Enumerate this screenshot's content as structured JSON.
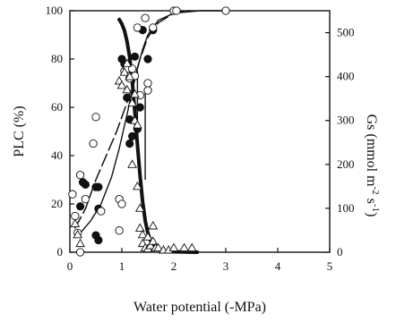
{
  "chart_data": {
    "type": "scatter",
    "xlabel": "Water potential (-MPa)",
    "ylabel_left": "PLC (%)",
    "ylabel_right_main": "Gs (mmol m",
    "ylabel_right_sup1": "-2",
    "ylabel_right_mid": " s",
    "ylabel_right_sup2": "-1",
    "ylabel_right_end": ")",
    "xlim": [
      0,
      5
    ],
    "ylim_left": [
      0,
      100
    ],
    "ylim_right": [
      0,
      550
    ],
    "x_ticks": [
      0,
      1,
      2,
      3,
      4,
      5
    ],
    "y_left_ticks": [
      0,
      20,
      40,
      60,
      80,
      100
    ],
    "y_right_ticks": [
      0,
      100,
      200,
      300,
      400,
      500
    ],
    "series": [
      {
        "marker": "filled-circle",
        "axis": "left",
        "points": [
          [
            0.2,
            19
          ],
          [
            0.25,
            29
          ],
          [
            0.3,
            28
          ],
          [
            0.5,
            27
          ],
          [
            0.55,
            27
          ],
          [
            0.5,
            7
          ],
          [
            0.55,
            5
          ],
          [
            0.55,
            18
          ],
          [
            1.0,
            80
          ],
          [
            1.05,
            78
          ],
          [
            1.1,
            64
          ],
          [
            1.15,
            55
          ],
          [
            1.15,
            45
          ],
          [
            1.2,
            48
          ],
          [
            1.25,
            81
          ],
          [
            1.3,
            51
          ],
          [
            1.35,
            60
          ],
          [
            1.4,
            92
          ],
          [
            1.5,
            80
          ],
          [
            1.6,
            92
          ]
        ]
      },
      {
        "marker": "open-circle",
        "axis": "left",
        "points": [
          [
            0.05,
            24
          ],
          [
            0.1,
            15
          ],
          [
            0.15,
            8
          ],
          [
            0.2,
            32
          ],
          [
            0.2,
            0
          ],
          [
            0.3,
            22
          ],
          [
            0.45,
            45
          ],
          [
            0.5,
            56
          ],
          [
            0.6,
            17
          ],
          [
            0.95,
            9
          ],
          [
            0.95,
            22
          ],
          [
            1.0,
            20
          ],
          [
            1.05,
            75
          ],
          [
            1.1,
            76
          ],
          [
            1.15,
            72
          ],
          [
            1.2,
            76
          ],
          [
            1.25,
            73
          ],
          [
            1.3,
            93
          ],
          [
            1.35,
            65
          ],
          [
            1.45,
            97
          ],
          [
            1.5,
            70
          ],
          [
            1.5,
            67
          ],
          [
            1.6,
            93
          ],
          [
            2.0,
            100
          ],
          [
            2.05,
            100
          ],
          [
            3.0,
            100
          ]
        ]
      },
      {
        "marker": "open-triangle",
        "axis": "right",
        "points": [
          [
            0.1,
            65
          ],
          [
            0.15,
            40
          ],
          [
            0.2,
            20
          ],
          [
            0.95,
            390
          ],
          [
            1.0,
            380
          ],
          [
            1.05,
            410
          ],
          [
            1.1,
            430
          ],
          [
            1.1,
            370
          ],
          [
            1.15,
            400
          ],
          [
            1.2,
            340
          ],
          [
            1.2,
            200
          ],
          [
            1.25,
            360
          ],
          [
            1.25,
            300
          ],
          [
            1.3,
            290
          ],
          [
            1.3,
            150
          ],
          [
            1.35,
            100
          ],
          [
            1.35,
            55
          ],
          [
            1.4,
            40
          ],
          [
            1.4,
            20
          ],
          [
            1.45,
            10
          ],
          [
            1.5,
            8
          ],
          [
            1.5,
            35
          ],
          [
            1.55,
            15
          ],
          [
            1.6,
            60
          ],
          [
            1.6,
            25
          ],
          [
            1.65,
            10
          ],
          [
            1.7,
            10
          ],
          [
            1.8,
            5
          ],
          [
            1.9,
            5
          ],
          [
            2.0,
            10
          ],
          [
            2.2,
            10
          ],
          [
            2.35,
            10
          ]
        ]
      }
    ],
    "curves": [
      {
        "style": "thick",
        "axis": "right",
        "points": [
          [
            0.95,
            530
          ],
          [
            1.0,
            520
          ],
          [
            1.05,
            505
          ],
          [
            1.1,
            480
          ],
          [
            1.15,
            445
          ],
          [
            1.2,
            390
          ],
          [
            1.25,
            320
          ],
          [
            1.3,
            245
          ],
          [
            1.35,
            175
          ],
          [
            1.4,
            115
          ],
          [
            1.45,
            72
          ],
          [
            1.5,
            44
          ],
          [
            1.55,
            27
          ],
          [
            1.6,
            16
          ],
          [
            1.7,
            7
          ],
          [
            1.8,
            3
          ],
          [
            2.0,
            1
          ],
          [
            2.45,
            0
          ]
        ]
      },
      {
        "style": "solid-thin",
        "axis": "left",
        "points": [
          [
            0.1,
            6
          ],
          [
            0.2,
            8
          ],
          [
            0.4,
            13
          ],
          [
            0.6,
            20
          ],
          [
            0.8,
            31
          ],
          [
            0.95,
            43
          ],
          [
            1.1,
            57
          ],
          [
            1.2,
            67
          ],
          [
            1.3,
            76
          ],
          [
            1.4,
            84
          ],
          [
            1.5,
            90
          ],
          [
            1.7,
            96
          ],
          [
            2.0,
            99
          ],
          [
            2.5,
            100
          ],
          [
            3.0,
            100
          ]
        ]
      },
      {
        "style": "dashed",
        "axis": "left",
        "points": [
          [
            0.1,
            10
          ],
          [
            0.3,
            18
          ],
          [
            0.5,
            30
          ],
          [
            0.7,
            40
          ],
          [
            0.9,
            50
          ],
          [
            1.0,
            56
          ],
          [
            1.1,
            62
          ],
          [
            1.2,
            69
          ],
          [
            1.35,
            80
          ],
          [
            1.5,
            89
          ],
          [
            1.7,
            95
          ],
          [
            2.0,
            99
          ],
          [
            2.3,
            100
          ]
        ]
      }
    ],
    "vlines": [
      {
        "x": 1.3,
        "range": [
          50,
          75
        ]
      },
      {
        "x": 1.45,
        "range": [
          30,
          68
        ]
      }
    ]
  }
}
